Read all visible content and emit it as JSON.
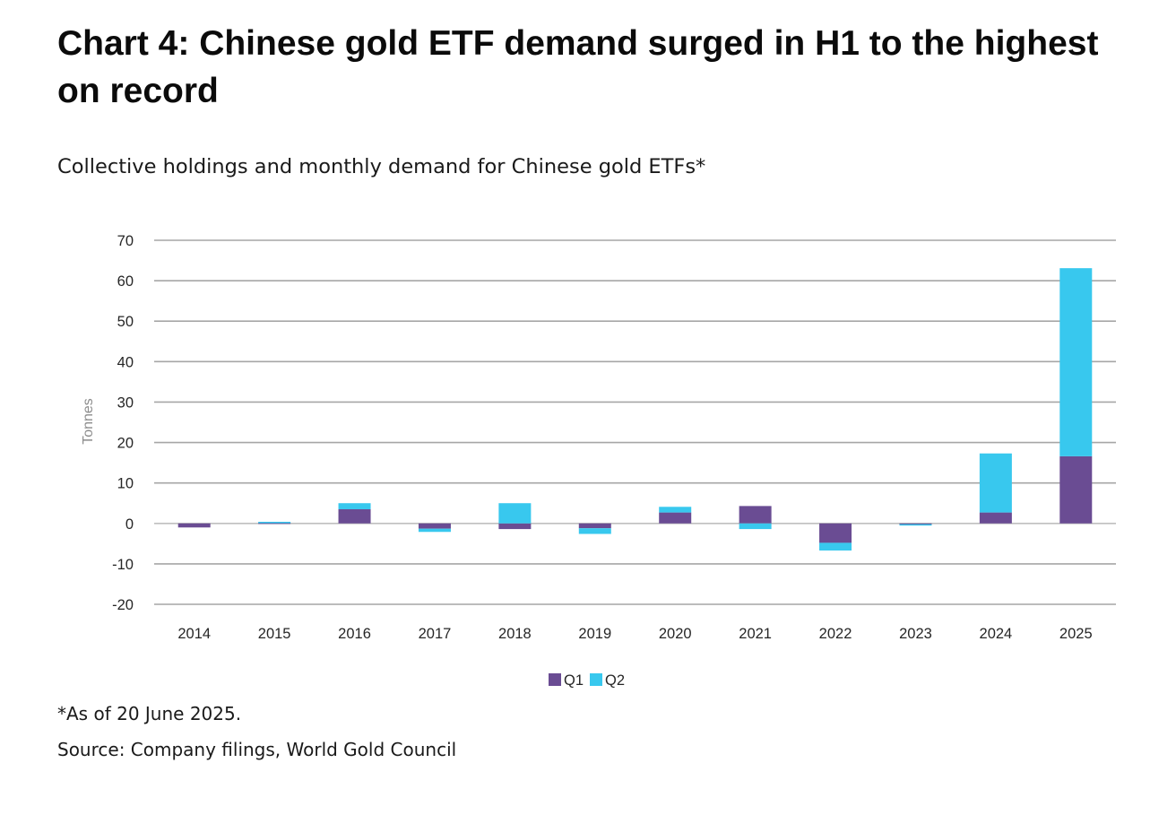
{
  "title": "Chart 4: Chinese gold ETF demand surged in H1 to the highest on record",
  "subtitle": "Collective holdings and monthly demand for Chinese gold ETFs*",
  "footnote": "*As of 20 June 2025.",
  "source": "Source: Company filings, World Gold Council",
  "colors": {
    "q1": "#6a4c93",
    "q2": "#38c8ee",
    "grid": "#a6a6a6",
    "zero": "#bfbfbf",
    "text": "#262626",
    "axis_label": "#8c8c8c"
  },
  "chart_data": {
    "type": "bar",
    "stacked": true,
    "categories": [
      "2014",
      "2015",
      "2016",
      "2017",
      "2018",
      "2019",
      "2020",
      "2021",
      "2022",
      "2023",
      "2024",
      "2025"
    ],
    "series": [
      {
        "name": "Q1",
        "values": [
          -1,
          0.2,
          3.5,
          -1.3,
          -1.4,
          -1.2,
          2.7,
          4.3,
          -4.8,
          -0.2,
          2.7,
          16.6
        ]
      },
      {
        "name": "Q2",
        "values": [
          0,
          0.2,
          1.5,
          -0.8,
          5.0,
          -1.4,
          1.4,
          -1.4,
          -1.9,
          -0.2,
          14.6,
          46.5
        ]
      }
    ],
    "ylabel": "Tonnes",
    "xlabel": "",
    "ylim": [
      -20,
      70
    ],
    "yticks": [
      "70",
      "60",
      "50",
      "40",
      "30",
      "20",
      "10",
      "0",
      "-10",
      "-20"
    ],
    "grid": true,
    "legend": "bottom-center"
  }
}
